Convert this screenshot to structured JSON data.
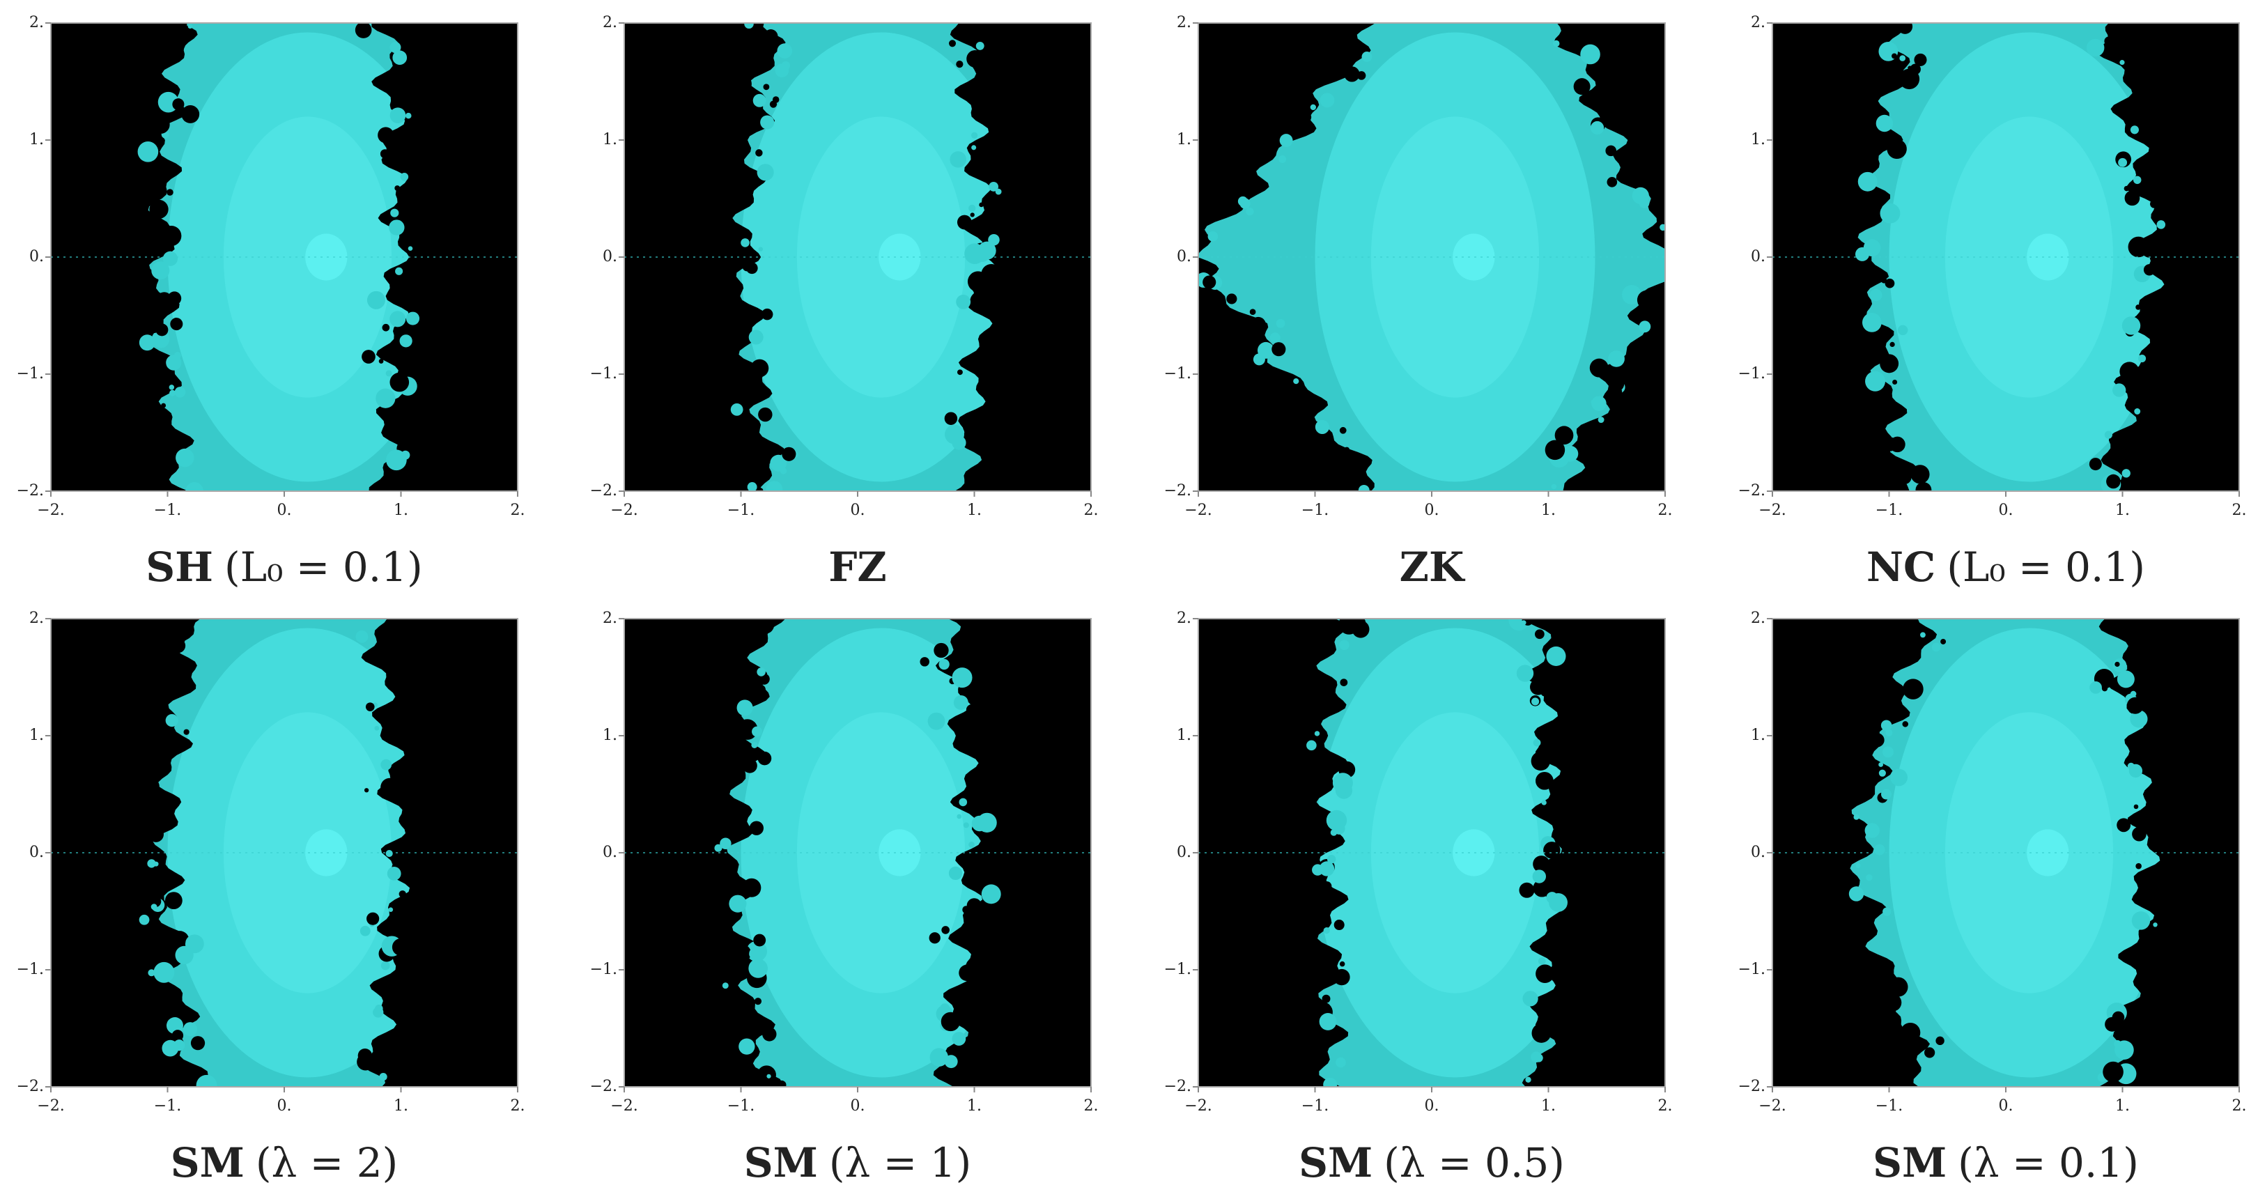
{
  "chart_data": [
    {
      "type": "basin",
      "title": "SH",
      "subtitle": "(L₀ = 0.1)",
      "xlim": [
        -2,
        2
      ],
      "ylim": [
        -2,
        2
      ],
      "xticks": [
        {
          "value": -2,
          "label": "−2."
        },
        {
          "value": -1,
          "label": "−1."
        },
        {
          "value": 0,
          "label": "0."
        },
        {
          "value": 1,
          "label": "1."
        },
        {
          "value": 2,
          "label": "2."
        }
      ],
      "yticks": [
        {
          "value": -2,
          "label": "−2."
        },
        {
          "value": -1,
          "label": "−1."
        },
        {
          "value": 0,
          "label": "0."
        },
        {
          "value": 1,
          "label": "1."
        },
        {
          "value": 2,
          "label": "2."
        }
      ]
    },
    {
      "type": "basin",
      "title": "FZ",
      "xlim": [
        -2,
        2
      ],
      "ylim": [
        -2,
        2
      ],
      "xticks": [
        {
          "value": -2,
          "label": "−2."
        },
        {
          "value": -1,
          "label": "−1."
        },
        {
          "value": 0,
          "label": "0."
        },
        {
          "value": 1,
          "label": "1."
        },
        {
          "value": 2,
          "label": "2."
        }
      ],
      "yticks": [
        {
          "value": -2,
          "label": "−2."
        },
        {
          "value": -1,
          "label": "−1."
        },
        {
          "value": 0,
          "label": "0."
        },
        {
          "value": 1,
          "label": "1."
        },
        {
          "value": 2,
          "label": "2."
        }
      ]
    },
    {
      "type": "basin",
      "title": "ZK",
      "xlim": [
        -2,
        2
      ],
      "ylim": [
        -2,
        2
      ],
      "xticks": [
        {
          "value": -2,
          "label": "−2."
        },
        {
          "value": -1,
          "label": "−1."
        },
        {
          "value": 0,
          "label": "0."
        },
        {
          "value": 1,
          "label": "1."
        },
        {
          "value": 2,
          "label": "2."
        }
      ],
      "yticks": [
        {
          "value": -2,
          "label": "−2."
        },
        {
          "value": -1,
          "label": "−1."
        },
        {
          "value": 0,
          "label": "0."
        },
        {
          "value": 1,
          "label": "1."
        },
        {
          "value": 2,
          "label": "2."
        }
      ]
    },
    {
      "type": "basin",
      "title": "NC",
      "subtitle": "(L₀ = 0.1)",
      "xlim": [
        -2,
        2
      ],
      "ylim": [
        -2,
        2
      ],
      "xticks": [
        {
          "value": -2,
          "label": "−2."
        },
        {
          "value": -1,
          "label": "−1."
        },
        {
          "value": 0,
          "label": "0."
        },
        {
          "value": 1,
          "label": "1."
        },
        {
          "value": 2,
          "label": "2."
        }
      ],
      "yticks": [
        {
          "value": -2,
          "label": "−2."
        },
        {
          "value": -1,
          "label": "−1."
        },
        {
          "value": 0,
          "label": "0."
        },
        {
          "value": 1,
          "label": "1."
        },
        {
          "value": 2,
          "label": "2."
        }
      ]
    },
    {
      "type": "basin",
      "title": "SM",
      "subtitle": "(λ = 2)",
      "xlim": [
        -2,
        2
      ],
      "ylim": [
        -2,
        2
      ],
      "xticks": [
        {
          "value": -2,
          "label": "−2."
        },
        {
          "value": -1,
          "label": "−1."
        },
        {
          "value": 0,
          "label": "0."
        },
        {
          "value": 1,
          "label": "1."
        },
        {
          "value": 2,
          "label": "2."
        }
      ],
      "yticks": [
        {
          "value": -2,
          "label": "−2."
        },
        {
          "value": -1,
          "label": "−1."
        },
        {
          "value": 0,
          "label": "0."
        },
        {
          "value": 1,
          "label": "1."
        },
        {
          "value": 2,
          "label": "2."
        }
      ]
    },
    {
      "type": "basin",
      "title": "SM",
      "subtitle": "(λ = 1)",
      "xlim": [
        -2,
        2
      ],
      "ylim": [
        -2,
        2
      ],
      "xticks": [
        {
          "value": -2,
          "label": "−2."
        },
        {
          "value": -1,
          "label": "−1."
        },
        {
          "value": 0,
          "label": "0."
        },
        {
          "value": 1,
          "label": "1."
        },
        {
          "value": 2,
          "label": "2."
        }
      ],
      "yticks": [
        {
          "value": -2,
          "label": "−2."
        },
        {
          "value": -1,
          "label": "−1."
        },
        {
          "value": 0,
          "label": "0."
        },
        {
          "value": 1,
          "label": "1."
        },
        {
          "value": 2,
          "label": "2."
        }
      ]
    },
    {
      "type": "basin",
      "title": "SM",
      "subtitle": "(λ = 0.5)",
      "xlim": [
        -2,
        2
      ],
      "ylim": [
        -2,
        2
      ],
      "xticks": [
        {
          "value": -2,
          "label": "−2."
        },
        {
          "value": -1,
          "label": "−1."
        },
        {
          "value": 0,
          "label": "0."
        },
        {
          "value": 1,
          "label": "1."
        },
        {
          "value": 2,
          "label": "2."
        }
      ],
      "yticks": [
        {
          "value": -2,
          "label": "−2."
        },
        {
          "value": -1,
          "label": "−1."
        },
        {
          "value": 0,
          "label": "0."
        },
        {
          "value": 1,
          "label": "1."
        },
        {
          "value": 2,
          "label": "2."
        }
      ]
    },
    {
      "type": "basin",
      "title": "SM",
      "subtitle": "(λ = 0.1)",
      "xlim": [
        -2,
        2
      ],
      "ylim": [
        -2,
        2
      ],
      "xticks": [
        {
          "value": -2,
          "label": "−2."
        },
        {
          "value": -1,
          "label": "−1."
        },
        {
          "value": 0,
          "label": "0."
        },
        {
          "value": 1,
          "label": "1."
        },
        {
          "value": 2,
          "label": "2."
        }
      ],
      "yticks": [
        {
          "value": -2,
          "label": "−2."
        },
        {
          "value": -1,
          "label": "−1."
        },
        {
          "value": 0,
          "label": "0."
        },
        {
          "value": 1,
          "label": "1."
        },
        {
          "value": 2,
          "label": "2."
        }
      ]
    }
  ]
}
